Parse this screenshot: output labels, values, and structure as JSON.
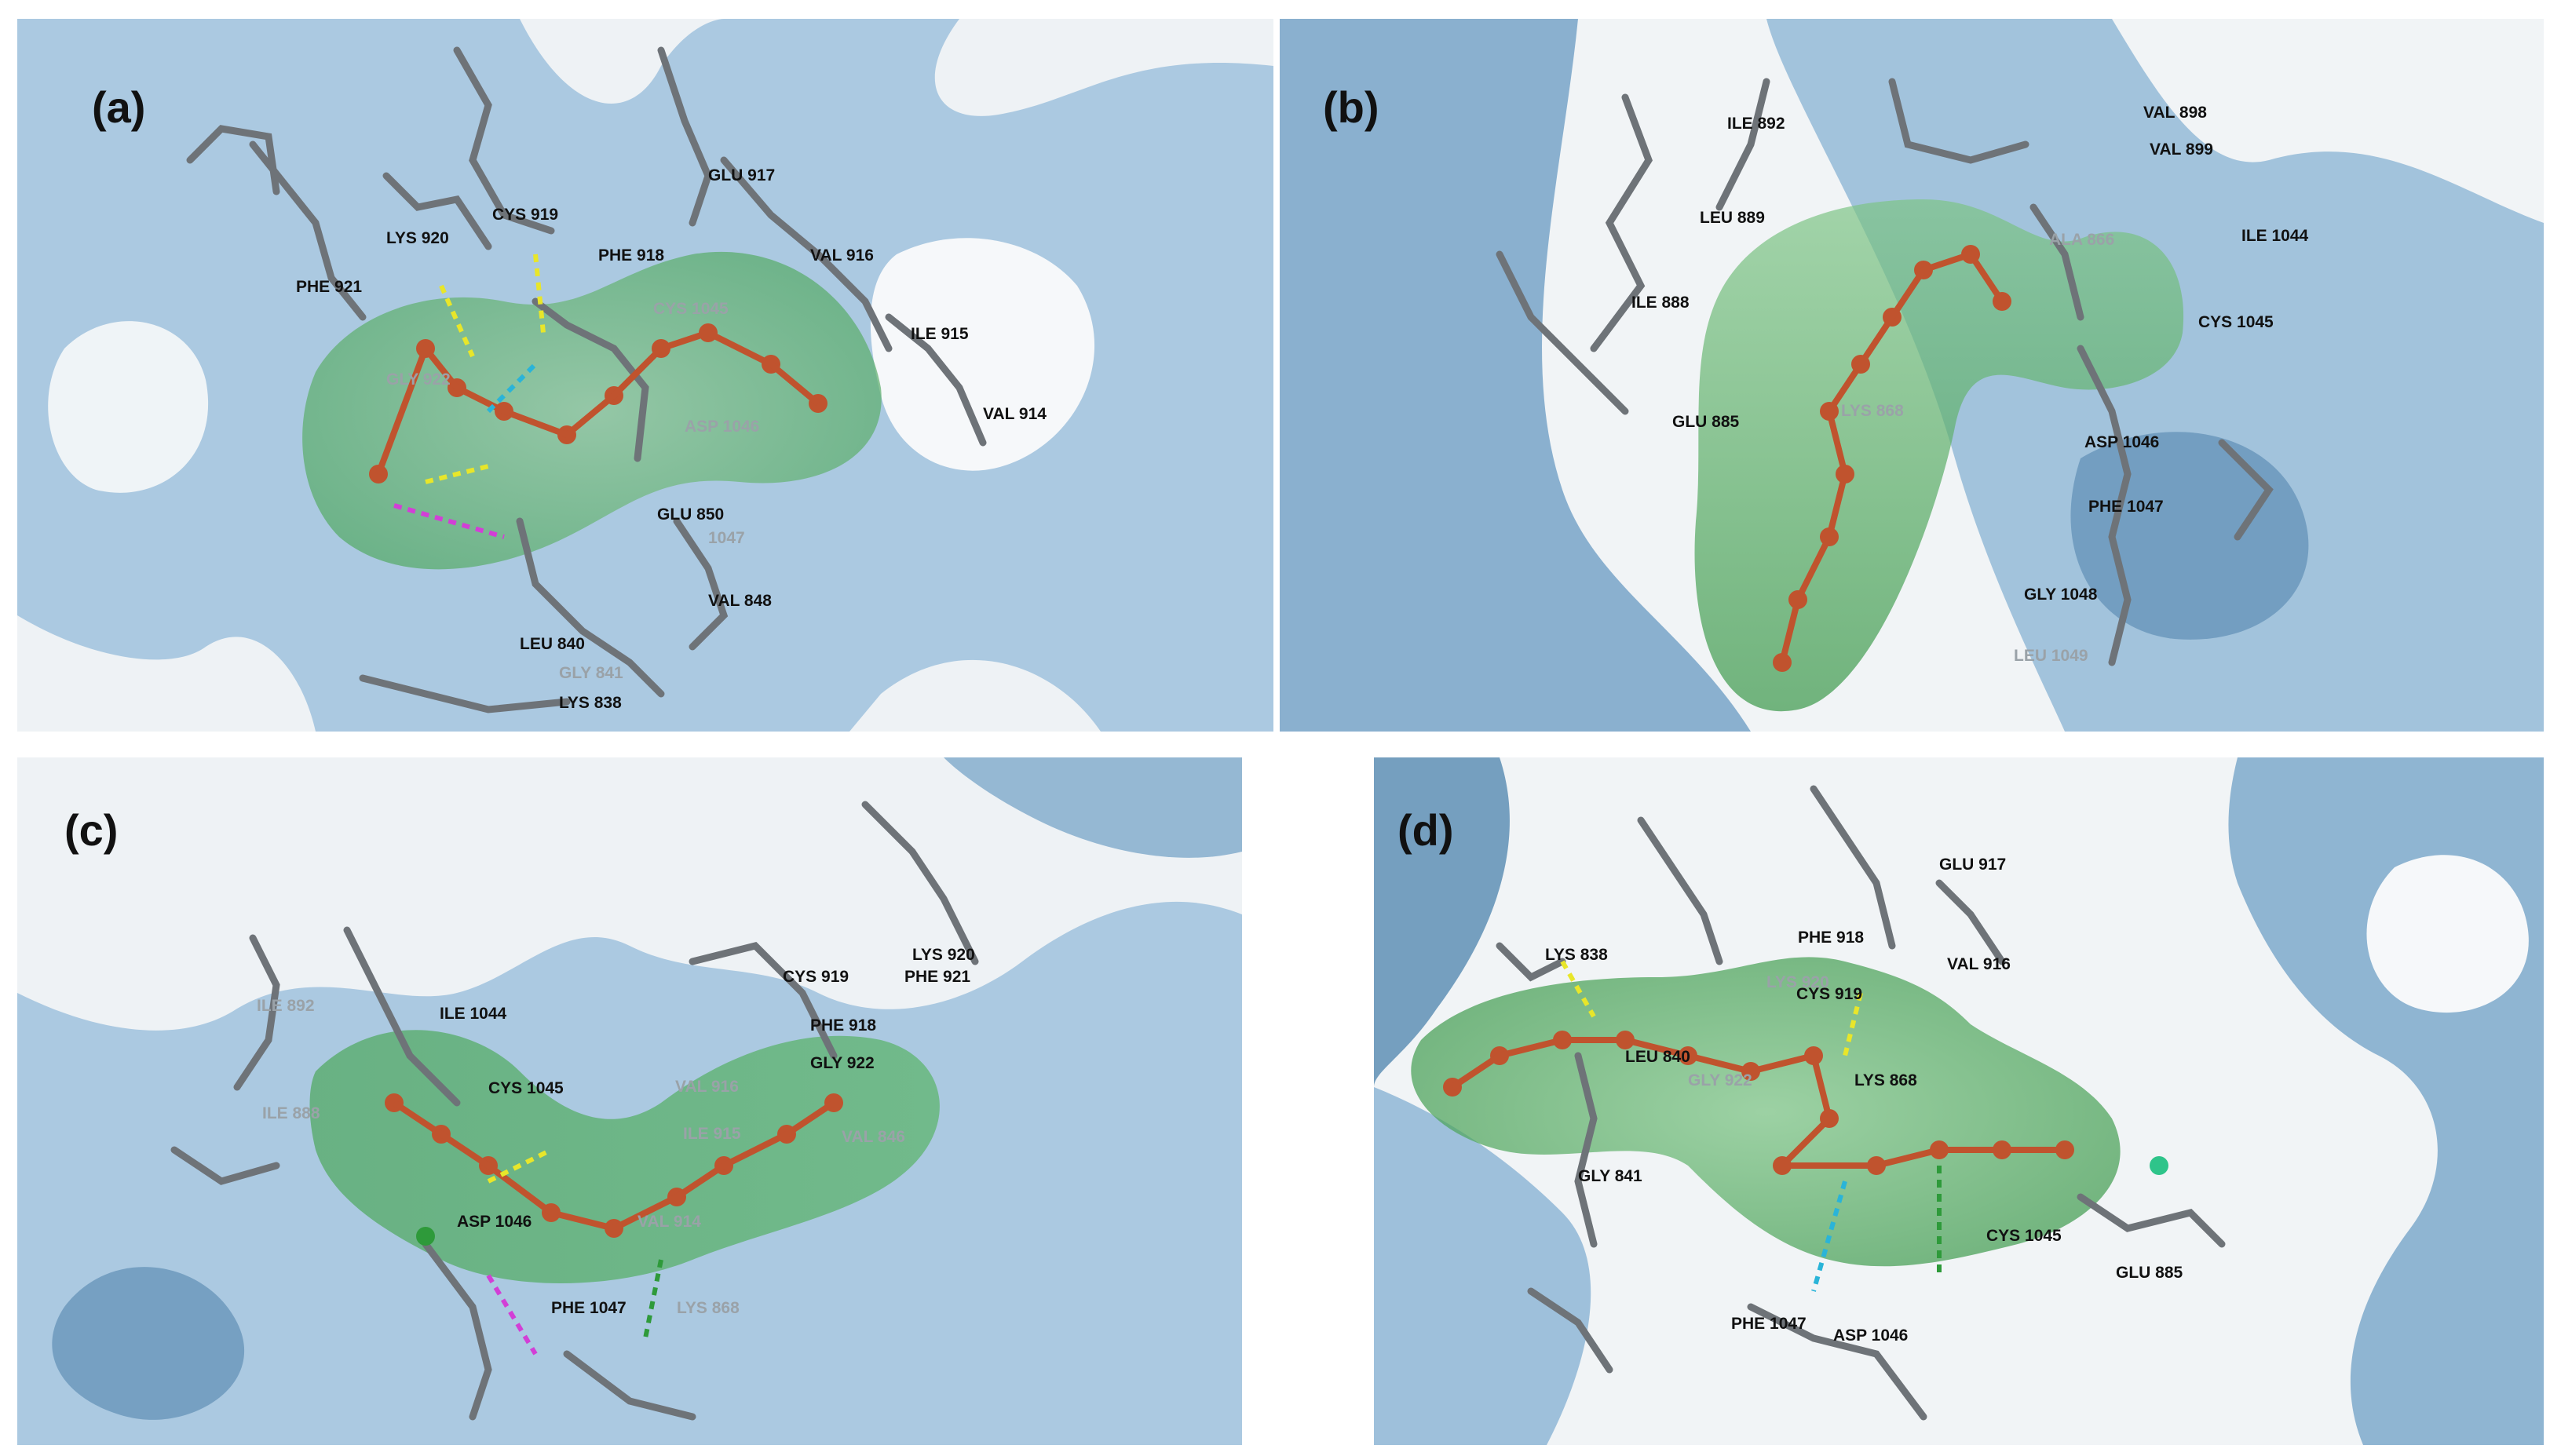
{
  "panels": [
    {
      "label": "(a)",
      "residues": [
        "LYS 920",
        "CYS 919",
        "PHE 921",
        "PHE 918",
        "GLU 917",
        "VAL 916",
        "CYS 1045",
        "GLY 922",
        "ILE 915",
        "ASP 1046",
        "VAL 914",
        "GLU 850",
        "1047",
        "VAL 848",
        "LEU 840",
        "GLY 841",
        "LYS 838"
      ]
    },
    {
      "label": "(b)",
      "residues": [
        "ILE 892",
        "VAL 898",
        "VAL 899",
        "LEU 889",
        "ALA 866",
        "ILE 1044",
        "ILE 888",
        "CYS 1045",
        "LYS 868",
        "GLU 885",
        "ASP 1046",
        "PHE 1047",
        "GLY 1048",
        "LEU 1049"
      ]
    },
    {
      "label": "(c)",
      "residues": [
        "LYS 920",
        "CYS 919",
        "PHE 921",
        "ILE 892",
        "ILE 1044",
        "PHE 918",
        "GLY 922",
        "VAL 916",
        "CYS 1045",
        "ILE 888",
        "ILE 915",
        "VAL 846",
        "ASP 1046",
        "VAL 914",
        "PHE 1047",
        "LYS 868"
      ]
    },
    {
      "label": "(d)",
      "residues": [
        "GLU 917",
        "LYS 838",
        "PHE 918",
        "VAL 916",
        "LYS 920",
        "CYS 919",
        "LEU 840",
        "GLY 922",
        "LYS 868",
        "GLY 841",
        "CYS 1045",
        "GLU 885",
        "PHE 1047",
        "ASP 1046"
      ]
    }
  ],
  "colors": {
    "surface": "#8fb6d6",
    "surface_dark": "#5f8fb5",
    "pocket": "#5bb46a",
    "ligand": "#c0532e",
    "stick": "#6e7378",
    "hbond": "#e8e62a",
    "pi": "#2ab4d8",
    "salt": "#d23fd6",
    "pi_green": "#2e9a3a"
  }
}
